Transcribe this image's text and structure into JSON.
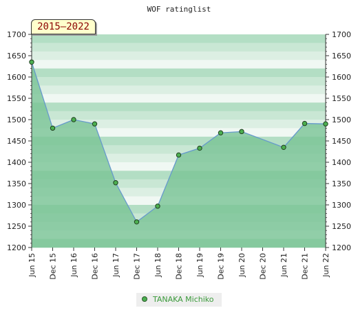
{
  "chart_data": {
    "type": "area",
    "title": "WOF ratinglist",
    "period_label": "2015–2022",
    "categories": [
      "Jun 15",
      "Dec 15",
      "Jun 16",
      "Dec 16",
      "Jun 17",
      "Dec 17",
      "Jun 18",
      "Dec 18",
      "Jun 19",
      "Dec 19",
      "Jun 20",
      "Dec 20",
      "Jun 21",
      "Dec 21",
      "Jun 22"
    ],
    "series": [
      {
        "name": "TANAKA Michiko",
        "points": [
          {
            "x": "Jun 15",
            "y": 1635
          },
          {
            "x": "Dec 15",
            "y": 1480
          },
          {
            "x": "Jun 16",
            "y": 1500
          },
          {
            "x": "Dec 16",
            "y": 1490
          },
          {
            "x": "Jun 17",
            "y": 1352
          },
          {
            "x": "Dec 17",
            "y": 1260
          },
          {
            "x": "Jun 18",
            "y": 1297
          },
          {
            "x": "Dec 18",
            "y": 1417
          },
          {
            "x": "Jun 19",
            "y": 1433
          },
          {
            "x": "Dec 19",
            "y": 1469
          },
          {
            "x": "Jun 20",
            "y": 1472
          },
          {
            "x": "Jun 21",
            "y": 1435
          },
          {
            "x": "Dec 21",
            "y": 1491
          },
          {
            "x": "Jun 22",
            "y": 1490
          }
        ]
      }
    ],
    "ylim": [
      1200,
      1700
    ],
    "yticks": [
      1200,
      1250,
      1300,
      1350,
      1400,
      1450,
      1500,
      1550,
      1600,
      1650,
      1700
    ],
    "colors": {
      "area": "#79c395",
      "line": "#6699cc",
      "marker": "#4caf50",
      "band_dark": "#b3dec4",
      "band_light": "#f0f8f3"
    },
    "legend_position": "bottom"
  }
}
